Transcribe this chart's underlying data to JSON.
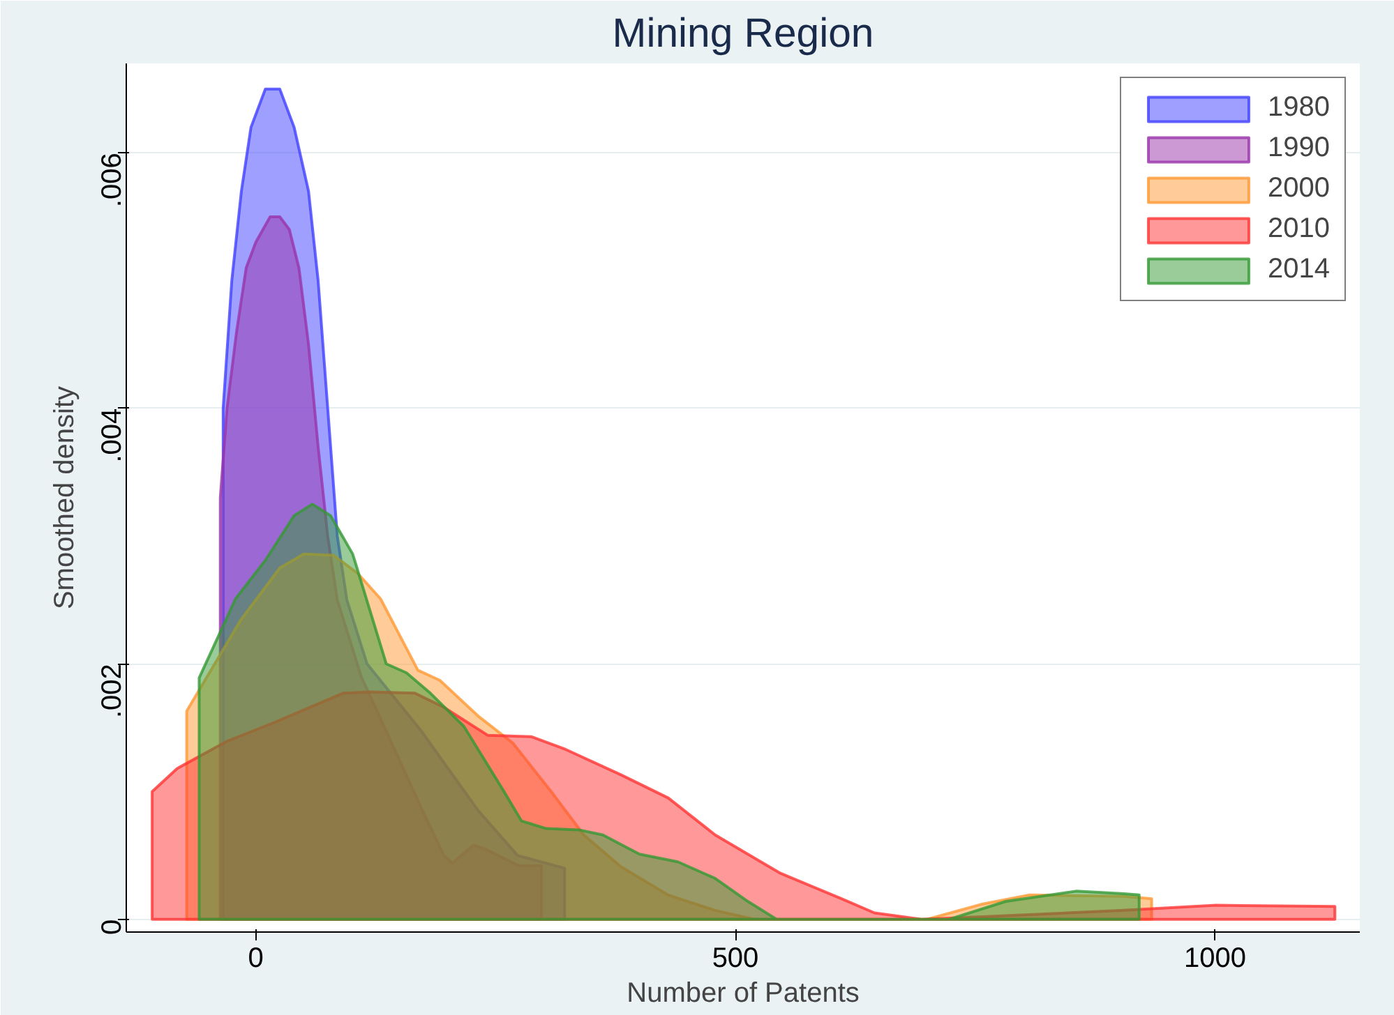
{
  "chart_data": {
    "type": "area",
    "title": "Mining Region",
    "xlabel": "Number of Patents",
    "ylabel": "Smoothed density",
    "xlim": [
      -135,
      1151
    ],
    "ylim": [
      -0.0001,
      0.0067
    ],
    "xticks": [
      0,
      500,
      1000
    ],
    "yticks": [
      {
        "value": 0,
        "label": "0"
      },
      {
        "value": 0.002,
        "label": ".002"
      },
      {
        "value": 0.004,
        "label": ".004"
      },
      {
        "value": 0.006,
        "label": ".006"
      }
    ],
    "grid": "y",
    "legend": "top right",
    "series": [
      {
        "name": "1980",
        "color": "#4040ff",
        "x": [
          -34,
          -34,
          -25,
          -15,
          -5,
          10,
          25,
          40,
          55,
          65,
          75,
          85,
          95,
          116,
          172,
          232,
          273,
          322
        ],
        "values": [
          0,
          0.004,
          0.005,
          0.0057,
          0.0062,
          0.0065,
          0.0065,
          0.0062,
          0.0057,
          0.005,
          0.004,
          0.003,
          0.0025,
          0.002,
          0.00148,
          0.00085,
          0.0005,
          0.0004
        ]
      },
      {
        "name": "1990",
        "color": "#9933aa",
        "x": [
          -37,
          -37,
          -30,
          -20,
          -10,
          0,
          15,
          25,
          35,
          45,
          55,
          65,
          75,
          85,
          110,
          172,
          196,
          205,
          227,
          239,
          274,
          298
        ],
        "values": [
          0,
          0.0033,
          0.004,
          0.0046,
          0.0051,
          0.0053,
          0.0055,
          0.0055,
          0.0054,
          0.0051,
          0.0045,
          0.0037,
          0.003,
          0.0025,
          0.0019,
          0.00088,
          0.0005,
          0.00044,
          0.00058,
          0.00055,
          0.00042,
          0.00042
        ]
      },
      {
        "name": "2000",
        "color": "#ff9933",
        "x": [
          -72,
          -72,
          -16,
          25,
          50,
          81,
          106,
          130,
          169,
          192,
          232,
          268,
          308,
          342,
          381,
          430,
          479,
          520,
          700,
          758,
          806,
          905,
          934
        ],
        "values": [
          0,
          0.00163,
          0.00234,
          0.00275,
          0.00286,
          0.00285,
          0.00271,
          0.00251,
          0.00195,
          0.00187,
          0.00159,
          0.00138,
          0.001,
          0.00066,
          0.00041,
          0.00019,
          7e-05,
          0,
          0,
          0.00012,
          0.00019,
          0.00018,
          0.00016
        ]
      },
      {
        "name": "2010",
        "color": "#ff3333",
        "x": [
          -108,
          -108,
          -82,
          -31,
          19,
          91,
          120,
          166,
          196,
          242,
          287,
          323,
          381,
          430,
          479,
          513,
          547,
          611,
          645,
          694,
          758,
          905,
          1001,
          1125
        ],
        "values": [
          0,
          0.001,
          0.00118,
          0.00139,
          0.00154,
          0.00177,
          0.00178,
          0.00177,
          0.00166,
          0.00144,
          0.00143,
          0.00133,
          0.00113,
          0.00095,
          0.00066,
          0.00051,
          0.00036,
          0.00016,
          5e-05,
          0,
          2e-05,
          7e-05,
          0.00011,
          0.0001
        ]
      },
      {
        "name": "2014",
        "color": "#339933",
        "x": [
          -59,
          -59,
          -21,
          10,
          40,
          59,
          78,
          101,
          136,
          157,
          182,
          217,
          258,
          277,
          303,
          337,
          362,
          400,
          440,
          479,
          513,
          543,
          723,
          782,
          855,
          905,
          921
        ],
        "values": [
          0,
          0.00189,
          0.00251,
          0.00281,
          0.00316,
          0.00325,
          0.00316,
          0.00286,
          0.002,
          0.00193,
          0.00177,
          0.00151,
          0.00101,
          0.00077,
          0.00071,
          0.0007,
          0.00066,
          0.00051,
          0.00045,
          0.00032,
          0.00014,
          0,
          0,
          0.00014,
          0.00022,
          0.0002,
          0.00019
        ]
      }
    ]
  }
}
